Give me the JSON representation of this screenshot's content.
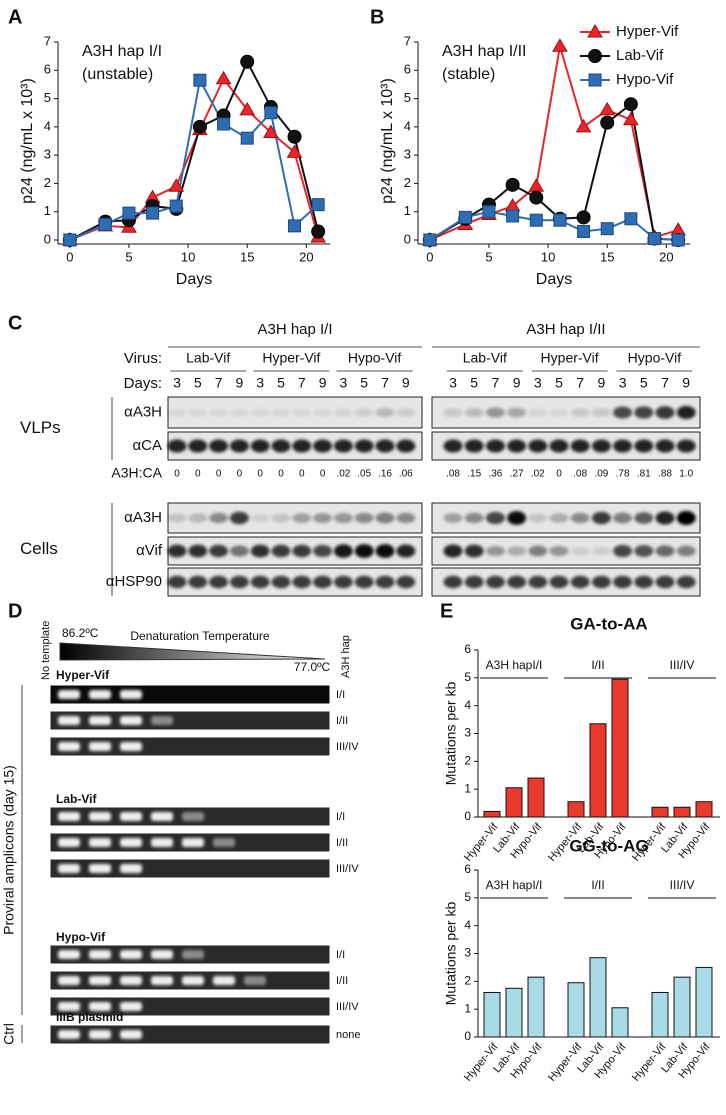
{
  "panel_labels": [
    "A",
    "B",
    "C",
    "D",
    "E"
  ],
  "chart_data": [
    {
      "type": "line",
      "annotation": [
        "A3H hap I/I",
        "(unstable)"
      ],
      "x_label": "Days",
      "y_label": "p24 (ng/mL x 10³)",
      "x": [
        0,
        3,
        5,
        7,
        9,
        11,
        13,
        15,
        17,
        19,
        21
      ],
      "xlim": [
        -1,
        22
      ],
      "xticks": [
        0,
        5,
        10,
        15,
        20
      ],
      "ylim": [
        0,
        7
      ],
      "yticks": [
        0,
        1,
        2,
        3,
        4,
        5,
        6,
        7
      ],
      "series": [
        {
          "name": "Hyper-Vif",
          "color": "#e8262a",
          "marker": "triangle",
          "values": [
            0,
            0.5,
            0.45,
            1.5,
            1.9,
            3.9,
            5.7,
            4.6,
            3.8,
            3.1,
            0.1
          ]
        },
        {
          "name": "Lab-Vif",
          "color": "#111111",
          "marker": "circle",
          "values": [
            0,
            0.65,
            0.7,
            1.2,
            1.1,
            4.0,
            4.4,
            6.3,
            4.7,
            3.65,
            0.3
          ]
        },
        {
          "name": "Hypo-Vif",
          "color": "#2e6db4",
          "marker": "square",
          "values": [
            0,
            0.55,
            0.95,
            0.95,
            1.2,
            5.65,
            4.1,
            3.6,
            4.5,
            0.5,
            1.25
          ]
        }
      ]
    },
    {
      "type": "line",
      "annotation": [
        "A3H hap I/II",
        "(stable)"
      ],
      "x_label": "Days",
      "y_label": "p24 (ng/mL x 10³)",
      "x": [
        0,
        3,
        5,
        7,
        9,
        11,
        13,
        15,
        17,
        19,
        21
      ],
      "xlim": [
        -1,
        22
      ],
      "xticks": [
        0,
        5,
        10,
        15,
        20
      ],
      "ylim": [
        0,
        7
      ],
      "yticks": [
        0,
        1,
        2,
        3,
        4,
        5,
        6,
        7
      ],
      "legend": "upper right",
      "series": [
        {
          "name": "Hyper-Vif",
          "color": "#e8262a",
          "marker": "triangle",
          "values": [
            0,
            0.55,
            0.9,
            1.2,
            1.9,
            6.85,
            4.0,
            4.6,
            4.25,
            0.1,
            0.35
          ]
        },
        {
          "name": "Lab-Vif",
          "color": "#111111",
          "marker": "circle",
          "values": [
            0,
            0.75,
            1.25,
            1.95,
            1.5,
            0.75,
            0.8,
            4.15,
            4.8,
            0.05,
            0
          ]
        },
        {
          "name": "Hypo-Vif",
          "color": "#2e6db4",
          "marker": "square",
          "values": [
            0,
            0.8,
            1.0,
            0.85,
            0.7,
            0.7,
            0.3,
            0.4,
            0.75,
            0.05,
            0
          ]
        }
      ]
    },
    {
      "type": "bar",
      "title": "GA-to-AA",
      "y_label": "Mutations per kb",
      "color": "#e8392c",
      "groups": [
        "A3H hapI/I",
        "I/II",
        "III/IV"
      ],
      "categories": [
        "Hyper-Vif",
        "Lab-Vif",
        "Hypo-Vif",
        "Hyper-Vif",
        "Lab-Vif",
        "Hypo-Vif",
        "Hyper-Vif",
        "Lab-Vif",
        "Hypo-Vif"
      ],
      "values": [
        0.2,
        1.05,
        1.4,
        0.55,
        3.35,
        4.95,
        0.35,
        0.35,
        0.55
      ],
      "ylim": [
        0,
        6
      ],
      "yticks": [
        0,
        1,
        2,
        3,
        4,
        5,
        6
      ]
    },
    {
      "type": "bar",
      "title": "GG-to-AG",
      "y_label": "Mutations per kb",
      "color": "#a8dbe6",
      "groups": [
        "A3H hapI/I",
        "I/II",
        "III/IV"
      ],
      "categories": [
        "Hyper-Vif",
        "Lab-Vif",
        "Hypo-Vif",
        "Hyper-Vif",
        "Lab-Vif",
        "Hypo-Vif",
        "Hyper-Vif",
        "Lab-Vif",
        "Hypo-Vif"
      ],
      "values": [
        1.6,
        1.75,
        2.15,
        1.95,
        2.85,
        1.05,
        1.6,
        2.15,
        2.5
      ],
      "ylim": [
        0,
        6
      ],
      "yticks": [
        0,
        1,
        2,
        3,
        4,
        5,
        6
      ]
    }
  ],
  "blot": {
    "groups": [
      "A3H hap I/I",
      "A3H hap I/II"
    ],
    "virus_label": "Virus:",
    "viruses": [
      "Lab-Vif",
      "Hyper-Vif",
      "Hypo-Vif"
    ],
    "days_label": "Days:",
    "days": [
      "3",
      "5",
      "7",
      "9"
    ],
    "sections": [
      {
        "label": "VLPs",
        "rows": [
          "αA3H",
          "αCA"
        ]
      },
      {
        "label": "Cells",
        "rows": [
          "αA3H",
          "αVif",
          "αHSP90"
        ]
      }
    ],
    "ratio_label": "A3H:CA",
    "ratios": [
      "0",
      "0",
      "0",
      "0",
      "0",
      "0",
      "0",
      "0",
      ".02",
      ".05",
      ".16",
      ".06",
      ".08",
      ".15",
      ".36",
      ".27",
      ".02",
      "0",
      ".08",
      ".09",
      ".78",
      ".81",
      ".88",
      "1.0"
    ]
  },
  "gel": {
    "no_template": "No template",
    "temp_high": "86.2ºC",
    "temp_axis": "Denaturation Temperature",
    "temp_low": "77.0ºC",
    "hap_header": "A3H hap",
    "side_label": "Proviral amplicons (day 15)",
    "ctrl_label": "Ctrl",
    "blocks": [
      {
        "name": "Hyper-Vif",
        "rows": [
          "I/I",
          "I/II",
          "III/IV"
        ]
      },
      {
        "name": "Lab-Vif",
        "rows": [
          "I/I",
          "I/II",
          "III/IV"
        ]
      },
      {
        "name": "Hypo-Vif",
        "rows": [
          "I/I",
          "I/II",
          "III/IV"
        ]
      },
      {
        "name": "IIIB plasmid",
        "rows": [
          "none"
        ]
      }
    ]
  }
}
